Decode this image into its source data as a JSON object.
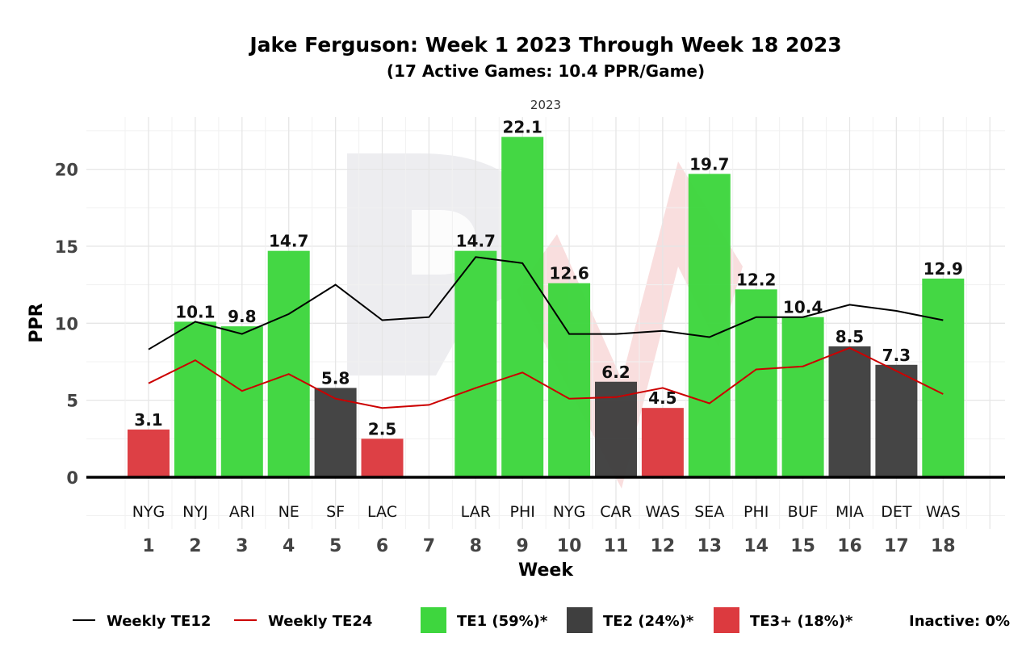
{
  "chart_data": {
    "type": "bar",
    "title": "Jake Ferguson: Week 1 2023 Through Week 18 2023",
    "subtitle": "(17 Active Games: 10.4 PPR/Game)",
    "facet_label": "2023",
    "xlabel": "Week",
    "ylabel": "PPR",
    "ylim": [
      -3.2,
      23.6
    ],
    "yticks": [
      0,
      5,
      10,
      15,
      20
    ],
    "grid": true,
    "weeks": [
      1,
      2,
      3,
      4,
      5,
      6,
      7,
      8,
      9,
      10,
      11,
      12,
      13,
      14,
      15,
      16,
      17,
      18
    ],
    "opponents": [
      "NYG",
      "NYJ",
      "ARI",
      "NE",
      "SF",
      "LAC",
      "",
      "LAR",
      "PHI",
      "NYG",
      "CAR",
      "WAS",
      "SEA",
      "PHI",
      "BUF",
      "MIA",
      "DET",
      "WAS"
    ],
    "values": [
      3.1,
      10.1,
      9.8,
      14.7,
      5.8,
      2.5,
      null,
      14.7,
      22.1,
      12.6,
      6.2,
      4.5,
      19.7,
      12.2,
      10.4,
      8.5,
      7.3,
      12.9
    ],
    "value_labels": [
      "3.1",
      "10.1",
      "9.8",
      "14.7",
      "5.8",
      "2.5",
      "",
      "14.7",
      "22.1",
      "12.6",
      "6.2",
      "4.5",
      "19.7",
      "12.2",
      "10.4",
      "8.5",
      "7.3",
      "12.9"
    ],
    "tiers": [
      "TE3+",
      "TE1",
      "TE1",
      "TE1",
      "TE2",
      "TE3+",
      null,
      "TE1",
      "TE1",
      "TE1",
      "TE2",
      "TE3+",
      "TE1",
      "TE1",
      "TE1",
      "TE2",
      "TE2",
      "TE1"
    ],
    "tier_colors": {
      "TE1": "#3ed63e",
      "TE2": "#3f3f3f",
      "TE3+": "#dc3a3f"
    },
    "lines": [
      {
        "name": "Weekly TE12",
        "color": "#000000",
        "values": [
          8.3,
          10.1,
          9.3,
          10.6,
          12.5,
          10.2,
          10.4,
          14.3,
          13.9,
          9.3,
          9.3,
          9.5,
          9.1,
          10.4,
          10.4,
          11.2,
          10.8,
          10.2
        ]
      },
      {
        "name": "Weekly TE24",
        "color": "#cc0000",
        "values": [
          6.1,
          7.6,
          5.6,
          6.7,
          5.1,
          4.5,
          4.7,
          5.8,
          6.8,
          5.1,
          5.2,
          5.8,
          4.8,
          7.0,
          7.2,
          8.4,
          6.9,
          5.4
        ]
      }
    ],
    "legend": {
      "position": "bottom",
      "items": [
        {
          "kind": "line",
          "label": "Weekly TE12",
          "color": "#000000"
        },
        {
          "kind": "line",
          "label": "Weekly TE24",
          "color": "#cc0000"
        },
        {
          "kind": "box",
          "label": "TE1 (59%)*",
          "color": "#3ed63e"
        },
        {
          "kind": "box",
          "label": "TE2 (24%)*",
          "color": "#3f3f3f"
        },
        {
          "kind": "box",
          "label": "TE3+ (18%)*",
          "color": "#dc3a3f"
        },
        {
          "kind": "text",
          "label": "Inactive: 0%"
        }
      ]
    }
  }
}
